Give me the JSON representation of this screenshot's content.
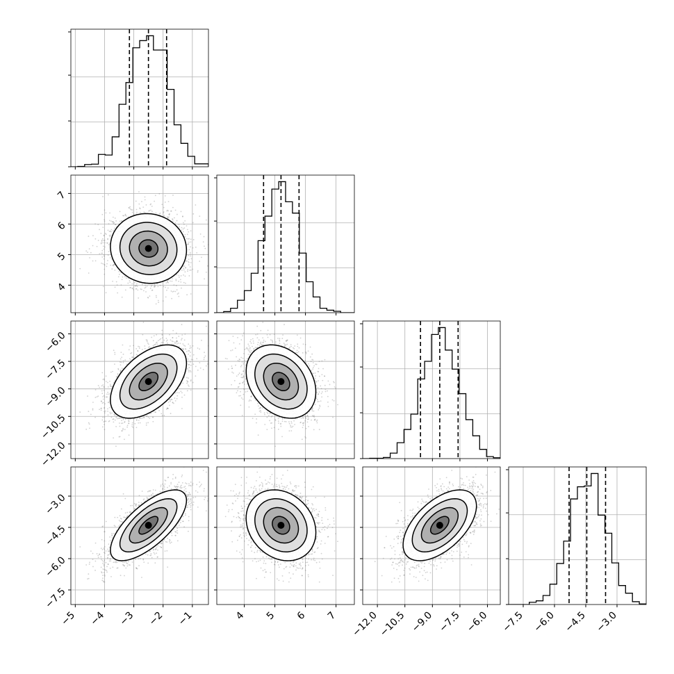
{
  "chart_data": {
    "type": "corner",
    "parameters": [
      {
        "id": "p1",
        "mean": -2.5,
        "sd": 0.65,
        "range": [
          -5.15,
          -0.45
        ],
        "ticks": [
          -5,
          -4,
          -3,
          -2,
          -1
        ],
        "tick_labels": [
          "−5",
          "−4",
          "−3",
          "−2",
          "−1"
        ],
        "quantiles": [
          -3.15,
          -2.5,
          -1.88
        ]
      },
      {
        "id": "p2",
        "mean": 5.2,
        "sd": 0.57,
        "range": [
          3.1,
          7.6
        ],
        "ticks": [
          4,
          5,
          6,
          7
        ],
        "tick_labels": [
          "4",
          "5",
          "6",
          "7"
        ],
        "quantiles": [
          4.63,
          5.2,
          5.79
        ]
      },
      {
        "id": "p3",
        "mean": -8.6,
        "sd": 1.0,
        "range": [
          -12.8,
          -5.3
        ],
        "ticks": [
          -12.0,
          -10.5,
          -9.0,
          -7.5,
          -6.0
        ],
        "tick_labels": [
          "−12.0",
          "−10.5",
          "−9.0",
          "−7.5",
          "−6.0"
        ],
        "quantiles": [
          -9.65,
          -8.6,
          -7.6
        ]
      },
      {
        "id": "p4",
        "mean": -4.4,
        "sd": 0.85,
        "range": [
          -8.2,
          -1.6
        ],
        "ticks": [
          -7.5,
          -6.0,
          -4.5,
          -3.0
        ],
        "tick_labels": [
          "−7.5",
          "−6.0",
          "−4.5",
          "−3.0"
        ],
        "quantiles": [
          -5.3,
          -4.45,
          -3.55
        ]
      }
    ],
    "correlations": [
      [
        1.0,
        -0.05,
        0.5,
        0.7
      ],
      [
        -0.05,
        1.0,
        -0.28,
        -0.2
      ],
      [
        0.5,
        -0.28,
        1.0,
        0.55
      ],
      [
        0.7,
        -0.2,
        0.55,
        1.0
      ]
    ],
    "histogram_bins": 20,
    "contour_levels_sigma": [
      0.5,
      1.0,
      1.5,
      2.0
    ],
    "grid": true,
    "colors": {
      "line": "#000000",
      "grid": "#b0b0b0",
      "points": "#777777"
    }
  }
}
